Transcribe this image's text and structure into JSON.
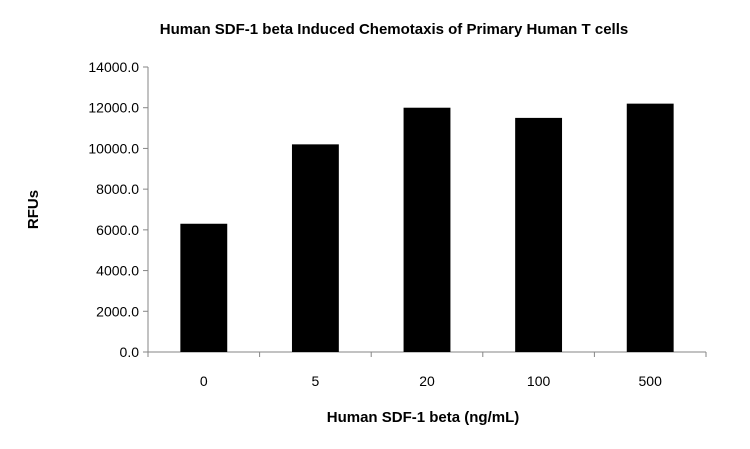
{
  "chart_data": {
    "type": "bar",
    "title": "Human SDF-1 beta Induced Chemotaxis of Primary Human T cells",
    "xlabel": "Human SDF-1 beta (ng/mL)",
    "ylabel": "RFUs",
    "categories": [
      "0",
      "5",
      "20",
      "100",
      "500"
    ],
    "values": [
      6300,
      10200,
      12000,
      11500,
      12200
    ],
    "ylim": [
      0,
      14000
    ],
    "yticks": [
      "0.0",
      "2000.0",
      "4000.0",
      "6000.0",
      "8000.0",
      "10000.0",
      "12000.0",
      "14000.0"
    ],
    "bar_color": "#000000",
    "grid": false,
    "legend": "none"
  }
}
